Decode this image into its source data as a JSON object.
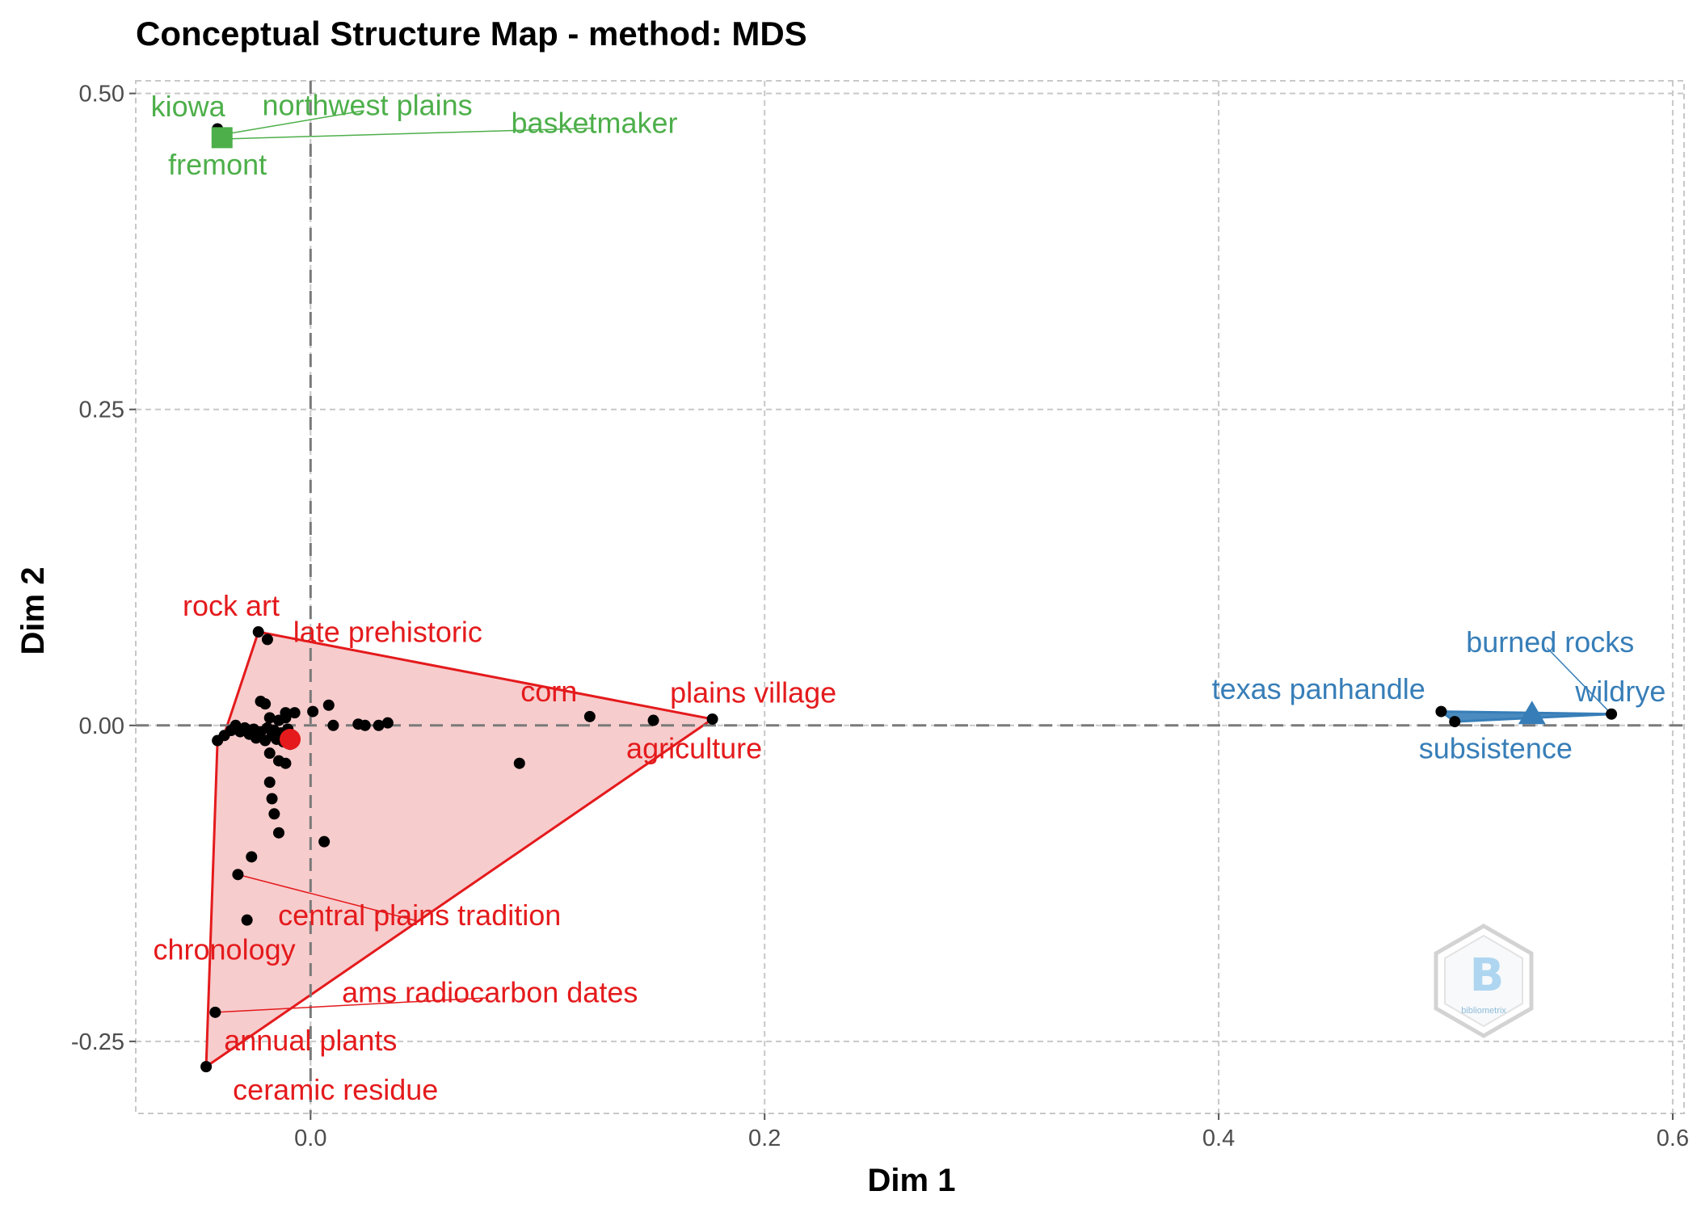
{
  "chart_data": {
    "type": "scatter",
    "title": "Conceptual Structure Map - method: MDS",
    "xlabel": "Dim 1",
    "ylabel": "Dim 2",
    "xlim": [
      -0.077,
      0.605
    ],
    "ylim": [
      -0.307,
      0.51
    ],
    "x_ticks": [
      {
        "value": 0.0,
        "label": "0.0"
      },
      {
        "value": 0.2,
        "label": "0.2"
      },
      {
        "value": 0.4,
        "label": "0.4"
      },
      {
        "value": 0.6,
        "label": "0.6"
      }
    ],
    "y_ticks": [
      {
        "value": 0.5,
        "label": "0.50"
      },
      {
        "value": 0.25,
        "label": "0.25"
      },
      {
        "value": 0.0,
        "label": "0.00"
      },
      {
        "value": -0.25,
        "label": "-0.25"
      }
    ],
    "grid": true,
    "reference_lines": {
      "x": 0,
      "y": 0
    },
    "clusters": [
      {
        "color": "#e41a1c",
        "fill": "#f7cccd",
        "marker": "circle",
        "centroid": [
          -0.009,
          -0.011
        ],
        "hull": [
          [
            -0.023,
            0.074
          ],
          [
            0.177,
            0.005
          ],
          [
            -0.046,
            -0.27
          ],
          [
            -0.041,
            -0.012
          ],
          [
            -0.038,
            -0.007
          ]
        ],
        "points": [
          [
            -0.023,
            0.074
          ],
          [
            -0.019,
            0.068
          ],
          [
            -0.022,
            0.019
          ],
          [
            -0.02,
            0.017
          ],
          [
            0.177,
            0.005
          ],
          [
            0.151,
            0.004
          ],
          [
            0.123,
            0.007
          ],
          [
            0.092,
            -0.03
          ],
          [
            0.008,
            0.016
          ],
          [
            0.001,
            0.011
          ],
          [
            -0.011,
            0.01
          ],
          [
            -0.007,
            0.01
          ],
          [
            -0.014,
            0.004
          ],
          [
            0.01,
            0.0
          ],
          [
            0.021,
            0.001
          ],
          [
            0.024,
            0.0
          ],
          [
            0.03,
            0.0
          ],
          [
            0.034,
            0.002
          ],
          [
            -0.018,
            0.006
          ],
          [
            -0.011,
            0.006
          ],
          [
            -0.041,
            -0.012
          ],
          [
            -0.038,
            -0.008
          ],
          [
            -0.035,
            -0.004
          ],
          [
            -0.033,
            0.0
          ],
          [
            -0.031,
            -0.005
          ],
          [
            -0.029,
            -0.002
          ],
          [
            -0.027,
            -0.007
          ],
          [
            -0.025,
            -0.003
          ],
          [
            -0.024,
            -0.01
          ],
          [
            -0.022,
            -0.005
          ],
          [
            -0.02,
            -0.012
          ],
          [
            -0.019,
            -0.002
          ],
          [
            -0.017,
            -0.008
          ],
          [
            -0.016,
            -0.004
          ],
          [
            -0.015,
            -0.011
          ],
          [
            -0.013,
            -0.006
          ],
          [
            -0.012,
            -0.013
          ],
          [
            -0.01,
            -0.003
          ],
          [
            -0.008,
            -0.009
          ],
          [
            -0.009,
            -0.015
          ],
          [
            -0.014,
            -0.028
          ],
          [
            -0.011,
            -0.03
          ],
          [
            -0.018,
            -0.022
          ],
          [
            -0.018,
            -0.045
          ],
          [
            -0.017,
            -0.058
          ],
          [
            -0.016,
            -0.07
          ],
          [
            -0.014,
            -0.085
          ],
          [
            0.006,
            -0.092
          ],
          [
            -0.026,
            -0.104
          ],
          [
            -0.032,
            -0.118
          ],
          [
            -0.028,
            -0.154
          ],
          [
            -0.042,
            -0.227
          ],
          [
            -0.046,
            -0.27
          ]
        ],
        "labels": [
          {
            "text": "rock art",
            "x": -0.023,
            "y": 0.074,
            "tx": -0.035,
            "ty": 0.093,
            "leader": false
          },
          {
            "text": "late prehistoric",
            "x": -0.019,
            "y": 0.068,
            "tx": 0.034,
            "ty": 0.072,
            "leader": false
          },
          {
            "text": "corn",
            "x": 0.123,
            "y": 0.007,
            "tx": 0.105,
            "ty": 0.025,
            "leader": false
          },
          {
            "text": "plains village",
            "x": 0.177,
            "y": 0.005,
            "tx": 0.195,
            "ty": 0.024,
            "leader": false
          },
          {
            "text": "agriculture",
            "x": 0.151,
            "y": 0.004,
            "tx": 0.169,
            "ty": -0.02,
            "leader": false
          },
          {
            "text": "central plains tradition",
            "x": -0.032,
            "y": -0.118,
            "tx": 0.048,
            "ty": -0.152,
            "leader": true
          },
          {
            "text": "chronology",
            "x": -0.028,
            "y": -0.154,
            "tx": -0.038,
            "ty": -0.179,
            "leader": false
          },
          {
            "text": "ams radiocarbon dates",
            "x": -0.042,
            "y": -0.227,
            "tx": 0.079,
            "ty": -0.213,
            "leader": true
          },
          {
            "text": "annual plants",
            "x": -0.042,
            "y": -0.227,
            "tx": 0.0,
            "ty": -0.251,
            "leader": false
          },
          {
            "text": "ceramic residue",
            "x": -0.046,
            "y": -0.27,
            "tx": 0.011,
            "ty": -0.29,
            "leader": false
          }
        ]
      },
      {
        "color": "#4daf4a",
        "fill": "#4daf4a",
        "marker": "square",
        "centroid": [
          -0.039,
          0.465
        ],
        "hull": [
          [
            -0.041,
            0.472
          ],
          [
            -0.037,
            0.468
          ],
          [
            -0.038,
            0.464
          ]
        ],
        "points": [
          [
            -0.041,
            0.472
          ],
          [
            -0.037,
            0.468
          ],
          [
            -0.038,
            0.464
          ]
        ],
        "labels": [
          {
            "text": "kiowa",
            "x": -0.041,
            "y": 0.472,
            "tx": -0.054,
            "ty": 0.488,
            "leader": false
          },
          {
            "text": "northwest plains",
            "x": -0.037,
            "y": 0.468,
            "tx": 0.025,
            "ty": 0.489,
            "leader": true
          },
          {
            "text": "basketmaker",
            "x": -0.038,
            "y": 0.464,
            "tx": 0.125,
            "ty": 0.475,
            "leader": true
          },
          {
            "text": "fremont",
            "x": -0.038,
            "y": 0.464,
            "tx": -0.041,
            "ty": 0.442,
            "leader": false
          }
        ]
      },
      {
        "color": "#377eb8",
        "fill": "#377eb8",
        "marker": "triangle",
        "centroid": [
          0.538,
          0.008
        ],
        "hull": [
          [
            0.498,
            0.011
          ],
          [
            0.573,
            0.009
          ],
          [
            0.504,
            0.003
          ]
        ],
        "points": [
          [
            0.498,
            0.011
          ],
          [
            0.504,
            0.003
          ],
          [
            0.573,
            0.009
          ]
        ],
        "labels": [
          {
            "text": "burned rocks",
            "x": 0.573,
            "y": 0.009,
            "tx": 0.546,
            "ty": 0.064,
            "leader": true
          },
          {
            "text": "texas panhandle",
            "x": 0.498,
            "y": 0.011,
            "tx": 0.444,
            "ty": 0.027,
            "leader": false
          },
          {
            "text": "wildrye",
            "x": 0.573,
            "y": 0.009,
            "tx": 0.577,
            "ty": 0.025,
            "leader": false
          },
          {
            "text": "subsistence",
            "x": 0.504,
            "y": 0.003,
            "tx": 0.522,
            "ty": -0.02,
            "leader": false
          }
        ]
      }
    ]
  },
  "logo": {
    "text": "bibliometrix",
    "glyph": "B"
  }
}
